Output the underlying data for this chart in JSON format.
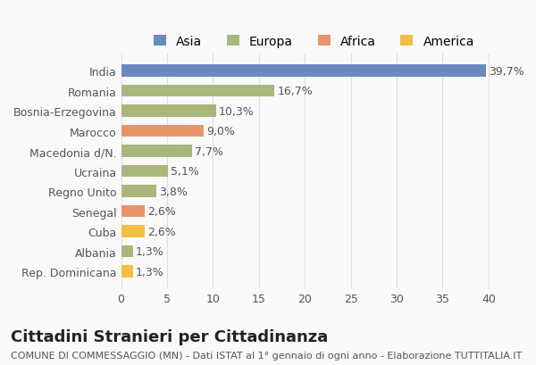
{
  "categories": [
    "Rep. Dominicana",
    "Albania",
    "Cuba",
    "Senegal",
    "Regno Unito",
    "Ucraina",
    "Macedonia d/N.",
    "Marocco",
    "Bosnia-Erzegovina",
    "Romania",
    "India"
  ],
  "values": [
    1.3,
    1.3,
    2.6,
    2.6,
    3.8,
    5.1,
    7.7,
    9.0,
    10.3,
    16.7,
    39.7
  ],
  "colors": [
    "#f0c040",
    "#a8b87a",
    "#f0c040",
    "#e8946a",
    "#a8b87a",
    "#a8b87a",
    "#a8b87a",
    "#e8946a",
    "#a8b87a",
    "#a8b87a",
    "#6a8abf"
  ],
  "labels": [
    "1,3%",
    "1,3%",
    "2,6%",
    "2,6%",
    "3,8%",
    "5,1%",
    "7,7%",
    "9,0%",
    "10,3%",
    "16,7%",
    "39,7%"
  ],
  "legend_labels": [
    "Asia",
    "Europa",
    "Africa",
    "America"
  ],
  "legend_colors": [
    "#6a8abf",
    "#a8b87a",
    "#e8946a",
    "#f0c040"
  ],
  "title": "Cittadini Stranieri per Cittadinanza",
  "subtitle": "COMUNE DI COMMESSAGGIO (MN) - Dati ISTAT al 1° gennaio di ogni anno - Elaborazione TUTTITALIA.IT",
  "xlim": [
    0,
    42
  ],
  "xticks": [
    0,
    5,
    10,
    15,
    20,
    25,
    30,
    35,
    40
  ],
  "bg_color": "#f9f9f9",
  "grid_color": "#dddddd",
  "bar_height": 0.6,
  "label_fontsize": 9,
  "title_fontsize": 13,
  "subtitle_fontsize": 8
}
